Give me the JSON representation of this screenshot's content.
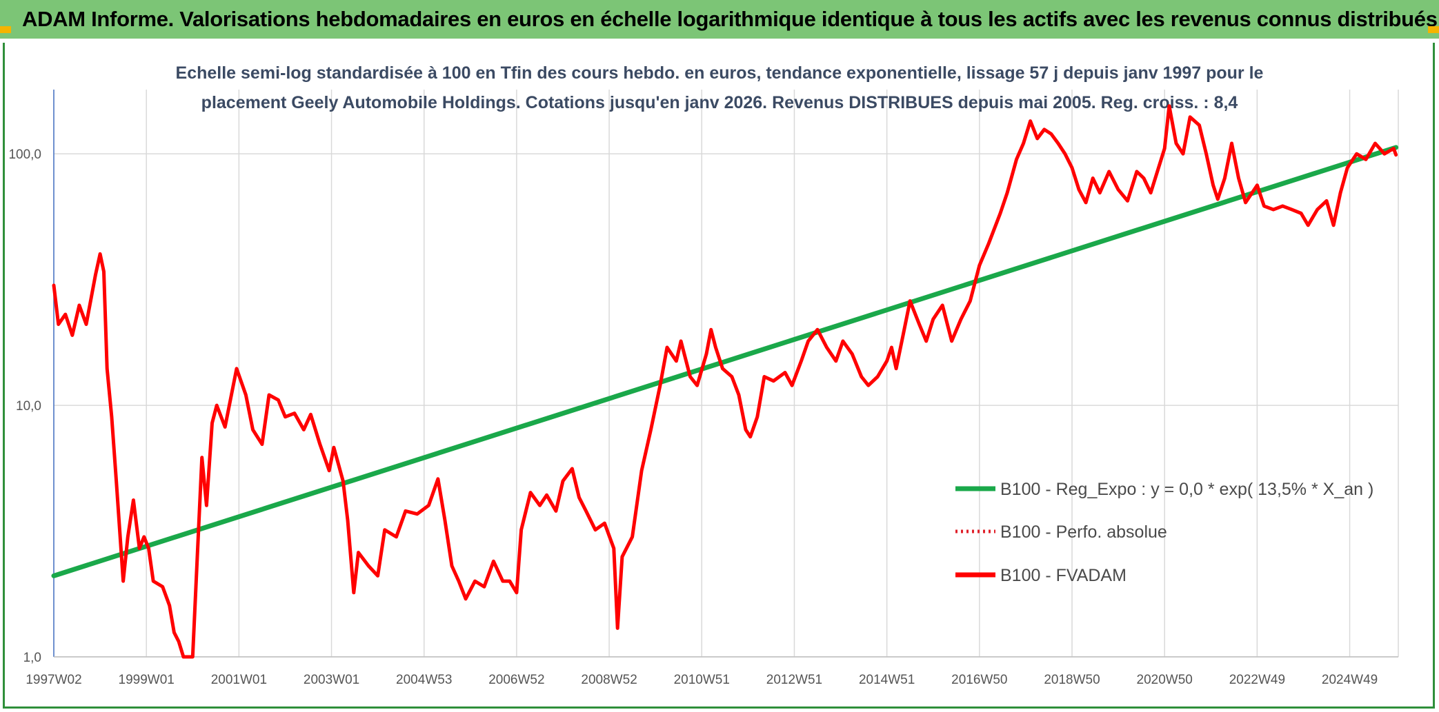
{
  "header": {
    "banner_title": "ADAM Informe. Valorisations hebdomadaires en euros en échelle logarithmique identique à tous les actifs avec les revenus connus distribués"
  },
  "colors": {
    "banner": "#7cc576",
    "regression": "#1aa84a",
    "fvadam": "#ff0000",
    "perfo": "#e0202a",
    "grid": "#d9d9d9"
  },
  "chart_data": {
    "type": "line",
    "title_line1": "Echelle semi-log standardisée à 100 en Tfin des cours hebdo. en euros, tendance exponentielle, lissage 57 j depuis janv 1997 pour le",
    "title_line2": "placement Geely Automobile Holdings. Cotations jusqu'en janv 2026. Revenus DISTRIBUES depuis mai 2005. Reg. croiss. : 8,4",
    "y_scale": "log",
    "ylim": [
      1,
      180
    ],
    "xlim": [
      1997.0,
      2026.05
    ],
    "y_ticks": [
      {
        "value": 1,
        "label": "1,0"
      },
      {
        "value": 10,
        "label": "10,0"
      },
      {
        "value": 100,
        "label": "100,0"
      }
    ],
    "x_ticks": [
      {
        "value": 1997.0,
        "label": "1997W02"
      },
      {
        "value": 1999.0,
        "label": "1999W01"
      },
      {
        "value": 2001.0,
        "label": "2001W01"
      },
      {
        "value": 2003.0,
        "label": "2003W01"
      },
      {
        "value": 2005.0,
        "label": "2004W53"
      },
      {
        "value": 2007.0,
        "label": "2006W52"
      },
      {
        "value": 2009.0,
        "label": "2008W52"
      },
      {
        "value": 2011.0,
        "label": "2010W51"
      },
      {
        "value": 2013.0,
        "label": "2012W51"
      },
      {
        "value": 2015.0,
        "label": "2014W51"
      },
      {
        "value": 2017.0,
        "label": "2016W50"
      },
      {
        "value": 2019.0,
        "label": "2018W50"
      },
      {
        "value": 2021.0,
        "label": "2020W50"
      },
      {
        "value": 2023.0,
        "label": "2022W49"
      },
      {
        "value": 2025.0,
        "label": "2024W49"
      }
    ],
    "grid": true,
    "legend_position": "bottom-right",
    "series": [
      {
        "name": "B100 - Reg_Expo : y = 0,0 * exp( 13,5% *  X_an )",
        "style": "solid-green",
        "points": [
          [
            1997.0,
            2.1
          ],
          [
            2026.0,
            106
          ]
        ]
      },
      {
        "name": "B100 - Perfo. absolue",
        "style": "dotted-red",
        "points": []
      },
      {
        "name": "B100 - FVADAM",
        "style": "solid-red",
        "points": [
          [
            1997.0,
            30
          ],
          [
            1997.1,
            21
          ],
          [
            1997.25,
            23
          ],
          [
            1997.4,
            19
          ],
          [
            1997.55,
            25
          ],
          [
            1997.7,
            21
          ],
          [
            1997.9,
            33
          ],
          [
            1998.0,
            40
          ],
          [
            1998.08,
            34
          ],
          [
            1998.15,
            14
          ],
          [
            1998.25,
            9
          ],
          [
            1998.35,
            5
          ],
          [
            1998.5,
            2.0
          ],
          [
            1998.6,
            3.0
          ],
          [
            1998.72,
            4.2
          ],
          [
            1998.85,
            2.7
          ],
          [
            1998.95,
            3.0
          ],
          [
            1999.05,
            2.7
          ],
          [
            1999.15,
            2.0
          ],
          [
            1999.35,
            1.9
          ],
          [
            1999.5,
            1.6
          ],
          [
            1999.6,
            1.25
          ],
          [
            1999.7,
            1.15
          ],
          [
            1999.8,
            1.0
          ],
          [
            2000.0,
            1.0
          ],
          [
            2000.1,
            2.5
          ],
          [
            2000.2,
            6.2
          ],
          [
            2000.3,
            4.0
          ],
          [
            2000.42,
            8.5
          ],
          [
            2000.52,
            10
          ],
          [
            2000.7,
            8.2
          ],
          [
            2000.95,
            14
          ],
          [
            2001.15,
            11
          ],
          [
            2001.3,
            8
          ],
          [
            2001.5,
            7
          ],
          [
            2001.65,
            11
          ],
          [
            2001.85,
            10.5
          ],
          [
            2002.0,
            9
          ],
          [
            2002.2,
            9.3
          ],
          [
            2002.4,
            8
          ],
          [
            2002.55,
            9.2
          ],
          [
            2002.75,
            7
          ],
          [
            2002.95,
            5.5
          ],
          [
            2003.05,
            6.8
          ],
          [
            2003.25,
            5
          ],
          [
            2003.35,
            3.5
          ],
          [
            2003.48,
            1.8
          ],
          [
            2003.58,
            2.6
          ],
          [
            2003.8,
            2.3
          ],
          [
            2004.0,
            2.1
          ],
          [
            2004.15,
            3.2
          ],
          [
            2004.4,
            3.0
          ],
          [
            2004.6,
            3.8
          ],
          [
            2004.85,
            3.7
          ],
          [
            2005.1,
            4.0
          ],
          [
            2005.3,
            5.1
          ],
          [
            2005.45,
            3.5
          ],
          [
            2005.6,
            2.3
          ],
          [
            2005.75,
            2.0
          ],
          [
            2005.9,
            1.7
          ],
          [
            2006.1,
            2.0
          ],
          [
            2006.3,
            1.9
          ],
          [
            2006.5,
            2.4
          ],
          [
            2006.7,
            2.0
          ],
          [
            2006.85,
            2.0
          ],
          [
            2007.0,
            1.8
          ],
          [
            2007.1,
            3.2
          ],
          [
            2007.3,
            4.5
          ],
          [
            2007.5,
            4.0
          ],
          [
            2007.65,
            4.4
          ],
          [
            2007.85,
            3.8
          ],
          [
            2008.0,
            5.0
          ],
          [
            2008.2,
            5.6
          ],
          [
            2008.35,
            4.3
          ],
          [
            2008.5,
            3.8
          ],
          [
            2008.7,
            3.2
          ],
          [
            2008.9,
            3.4
          ],
          [
            2009.1,
            2.7
          ],
          [
            2009.18,
            1.3
          ],
          [
            2009.28,
            2.5
          ],
          [
            2009.5,
            3.0
          ],
          [
            2009.7,
            5.5
          ],
          [
            2009.9,
            8
          ],
          [
            2010.1,
            12
          ],
          [
            2010.25,
            17
          ],
          [
            2010.45,
            15
          ],
          [
            2010.55,
            18
          ],
          [
            2010.75,
            13
          ],
          [
            2010.9,
            12
          ],
          [
            2011.1,
            16
          ],
          [
            2011.2,
            20
          ],
          [
            2011.3,
            17
          ],
          [
            2011.45,
            14
          ],
          [
            2011.65,
            13
          ],
          [
            2011.8,
            11
          ],
          [
            2011.95,
            8
          ],
          [
            2012.05,
            7.5
          ],
          [
            2012.2,
            9
          ],
          [
            2012.35,
            13
          ],
          [
            2012.55,
            12.5
          ],
          [
            2012.8,
            13.5
          ],
          [
            2012.95,
            12
          ],
          [
            2013.15,
            15
          ],
          [
            2013.3,
            18
          ],
          [
            2013.5,
            20
          ],
          [
            2013.7,
            17
          ],
          [
            2013.9,
            15
          ],
          [
            2014.05,
            18
          ],
          [
            2014.25,
            16
          ],
          [
            2014.45,
            13
          ],
          [
            2014.6,
            12
          ],
          [
            2014.8,
            13
          ],
          [
            2015.0,
            15
          ],
          [
            2015.1,
            17
          ],
          [
            2015.2,
            14
          ],
          [
            2015.35,
            19
          ],
          [
            2015.5,
            26
          ],
          [
            2015.7,
            21
          ],
          [
            2015.85,
            18
          ],
          [
            2016.0,
            22
          ],
          [
            2016.2,
            25
          ],
          [
            2016.4,
            18
          ],
          [
            2016.6,
            22
          ],
          [
            2016.8,
            26
          ],
          [
            2017.0,
            36
          ],
          [
            2017.2,
            44
          ],
          [
            2017.45,
            58
          ],
          [
            2017.6,
            70
          ],
          [
            2017.8,
            95
          ],
          [
            2017.95,
            110
          ],
          [
            2018.1,
            135
          ],
          [
            2018.25,
            115
          ],
          [
            2018.4,
            125
          ],
          [
            2018.55,
            120
          ],
          [
            2018.7,
            110
          ],
          [
            2018.85,
            100
          ],
          [
            2019.0,
            88
          ],
          [
            2019.15,
            72
          ],
          [
            2019.3,
            64
          ],
          [
            2019.45,
            80
          ],
          [
            2019.6,
            70
          ],
          [
            2019.8,
            85
          ],
          [
            2020.0,
            72
          ],
          [
            2020.2,
            65
          ],
          [
            2020.4,
            85
          ],
          [
            2020.55,
            80
          ],
          [
            2020.7,
            70
          ],
          [
            2021.0,
            105
          ],
          [
            2021.1,
            155
          ],
          [
            2021.25,
            110
          ],
          [
            2021.4,
            100
          ],
          [
            2021.55,
            140
          ],
          [
            2021.75,
            130
          ],
          [
            2021.9,
            100
          ],
          [
            2022.05,
            75
          ],
          [
            2022.15,
            66
          ],
          [
            2022.3,
            80
          ],
          [
            2022.45,
            110
          ],
          [
            2022.6,
            80
          ],
          [
            2022.75,
            64
          ],
          [
            2023.0,
            75
          ],
          [
            2023.15,
            62
          ],
          [
            2023.35,
            60
          ],
          [
            2023.55,
            62
          ],
          [
            2023.75,
            60
          ],
          [
            2023.95,
            58
          ],
          [
            2024.1,
            52
          ],
          [
            2024.3,
            60
          ],
          [
            2024.5,
            65
          ],
          [
            2024.65,
            52
          ],
          [
            2024.8,
            70
          ],
          [
            2024.95,
            88
          ],
          [
            2025.15,
            100
          ],
          [
            2025.35,
            95
          ],
          [
            2025.55,
            110
          ],
          [
            2025.75,
            100
          ],
          [
            2025.95,
            105
          ],
          [
            2026.0,
            99
          ]
        ]
      }
    ]
  }
}
